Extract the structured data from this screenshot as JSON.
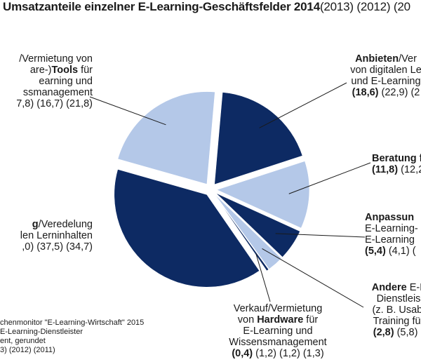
{
  "title": {
    "main": "Umsatzanteile einzelner  E-Learning-Geschäftsfelder 2014",
    "years": "(2013) (2012) (20"
  },
  "labels": [
    {
      "key": "tools",
      "lines": [
        {
          "segs": [
            {
              "t": "/Vermietung von",
              "b": false
            }
          ]
        },
        {
          "segs": [
            {
              "t": "are-)",
              "b": false
            },
            {
              "t": "Tools",
              "b": true
            },
            {
              "t": " für",
              "b": false
            }
          ]
        },
        {
          "segs": [
            {
              "t": "earning und",
              "b": false
            }
          ]
        },
        {
          "segs": [
            {
              "t": "ssmanagement",
              "b": false
            }
          ]
        },
        {
          "segs": [
            {
              "t": "7,8) (16,7) (21,8)",
              "b": false
            }
          ]
        }
      ]
    },
    {
      "key": "anbieten",
      "lines": [
        {
          "segs": [
            {
              "t": "Anbieten",
              "b": true
            },
            {
              "t": "/Ver",
              "b": false
            }
          ]
        },
        {
          "segs": [
            {
              "t": "von digitalen Le",
              "b": false
            }
          ]
        },
        {
          "segs": [
            {
              "t": "und E-Learning",
              "b": false
            }
          ]
        },
        {
          "segs": [
            {
              "t": "(18,6)",
              "b": true
            },
            {
              "t": " (22,9) (2",
              "b": false
            }
          ]
        }
      ]
    },
    {
      "key": "beratung",
      "lines": [
        {
          "segs": [
            {
              "t": "Beratung",
              "b": true
            },
            {
              "t": " f",
              "b": false
            }
          ]
        },
        {
          "segs": [
            {
              "t": "(11,8)",
              "b": true
            },
            {
              "t": " (12,2",
              "b": false
            }
          ]
        }
      ]
    },
    {
      "key": "anpassung",
      "lines": [
        {
          "segs": [
            {
              "t": "Anpassun",
              "b": true
            }
          ]
        },
        {
          "segs": [
            {
              "t": "E-Learning-",
              "b": false
            }
          ]
        },
        {
          "segs": [
            {
              "t": "E-Learning",
              "b": false
            }
          ]
        },
        {
          "segs": [
            {
              "t": "(5,4)",
              "b": true
            },
            {
              "t": " (4,1) (",
              "b": false
            }
          ]
        }
      ]
    },
    {
      "key": "andere",
      "lines": [
        {
          "segs": [
            {
              "t": "Andere",
              "b": true
            },
            {
              "t": " E-L",
              "b": false
            }
          ]
        },
        {
          "segs": [
            {
              "t": "Dienstleis",
              "b": false
            }
          ]
        },
        {
          "segs": [
            {
              "t": "(z. B. Usabi",
              "b": false
            }
          ]
        },
        {
          "segs": [
            {
              "t": "Training für",
              "b": false
            }
          ]
        },
        {
          "segs": [
            {
              "t": "(2,8)",
              "b": true
            },
            {
              "t": " (5,8) (",
              "b": false
            }
          ]
        }
      ]
    },
    {
      "key": "hardware",
      "lines": [
        {
          "segs": [
            {
              "t": "Verkauf/Vermietung",
              "b": false
            }
          ]
        },
        {
          "segs": [
            {
              "t": "von ",
              "b": false
            },
            {
              "t": "Hardware",
              "b": true
            },
            {
              "t": " für",
              "b": false
            }
          ]
        },
        {
          "segs": [
            {
              "t": "E-Learning und",
              "b": false
            }
          ]
        },
        {
          "segs": [
            {
              "t": "Wissensmanagement",
              "b": false
            }
          ]
        },
        {
          "segs": [
            {
              "t": "(0,4)",
              "b": true
            },
            {
              "t": " (1,2) (1,2) (1,3)",
              "b": false
            }
          ]
        }
      ]
    },
    {
      "key": "erstellung",
      "lines": [
        {
          "segs": [
            {
              "t": "g",
              "b": true
            },
            {
              "t": "/Veredelung",
              "b": false
            }
          ]
        },
        {
          "segs": [
            {
              "t": "len Lerninhalten",
              "b": false
            }
          ]
        },
        {
          "segs": [
            {
              "t": ",0) (37,5) (34,7)",
              "b": false
            }
          ]
        }
      ]
    }
  ],
  "note": [
    "chenmonitor  \"E-Learning-Wirtschaft\"  2015",
    "E-Learning-Dienstleister",
    "ent, gerundet",
    "3) (2012) (2011)"
  ],
  "colors": {
    "dark": "#0d2a63",
    "light": "#b4c8e8",
    "line": "#1a1a1a"
  },
  "chart_data": {
    "type": "pie",
    "title": "Umsatzanteile einzelner  E-Learning-Geschäftsfelder 2014",
    "unit": "%",
    "slices": [
      {
        "key": "anbieten",
        "value": 18.6,
        "color": "dark"
      },
      {
        "key": "beratung",
        "value": 11.8,
        "color": "light"
      },
      {
        "key": "anpassung",
        "value": 5.4,
        "color": "dark"
      },
      {
        "key": "andere",
        "value": 2.8,
        "color": "light"
      },
      {
        "key": "hardware",
        "value": 0.4,
        "color": "dark"
      },
      {
        "key": "erstellung",
        "value": 39.0,
        "color": "dark"
      },
      {
        "key": "tools",
        "value": 22.0,
        "color": "light"
      }
    ]
  }
}
